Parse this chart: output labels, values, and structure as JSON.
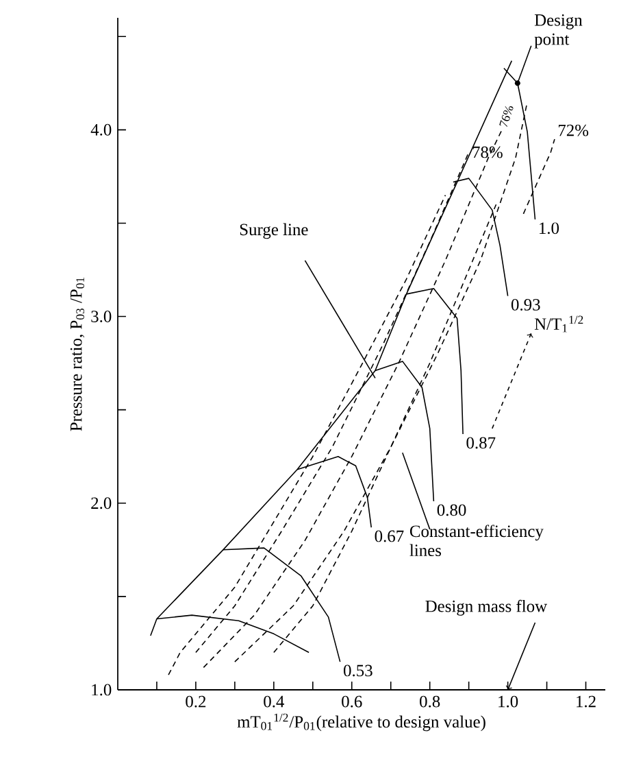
{
  "chart_data": {
    "type": "line",
    "xlabel": "mT$_{01}$$^{1/2}$/P$_{01}$(relative to design value)",
    "ylabel": "Pressure ratio, P$_{03}$ /P$_{01}$",
    "xlim": [
      0,
      1.25
    ],
    "ylim": [
      1.0,
      4.6
    ],
    "xticks": [
      {
        "value": 0.1,
        "label": null
      },
      0.2,
      {
        "value": 0.3,
        "label": null
      },
      0.4,
      {
        "value": 0.5,
        "label": null
      },
      0.6,
      {
        "value": 0.7,
        "label": null
      },
      0.8,
      {
        "value": 0.9,
        "label": null
      },
      {
        "value": 1.0,
        "label": "1.0"
      },
      {
        "value": 1.1,
        "label": null
      },
      1.2
    ],
    "yticks": [
      {
        "value": 1.0,
        "label": "1.0"
      },
      {
        "value": 1.5,
        "label": null
      },
      {
        "value": 2.0,
        "label": "2.0"
      },
      {
        "value": 2.5,
        "label": null
      },
      {
        "value": 3.0,
        "label": "3.0"
      },
      {
        "value": 3.5,
        "label": null
      },
      {
        "value": 4.0,
        "label": "4.0"
      },
      {
        "value": 4.5,
        "label": null
      }
    ],
    "series": [
      {
        "color": "#000000",
        "line_style": "solid",
        "x": [
          0.084,
          0.1,
          0.27,
          0.46,
          0.66,
          0.74,
          0.87,
          1.01
        ],
        "values": [
          1.29,
          1.38,
          1.75,
          2.18,
          2.71,
          3.12,
          3.72,
          4.37
        ]
      },
      {
        "color": "#000000",
        "line_style": "solid",
        "x": [
          0.1,
          0.19,
          0.31,
          0.4,
          0.49
        ],
        "values": [
          1.38,
          1.4,
          1.37,
          1.3,
          1.2
        ]
      },
      {
        "name": "0.53",
        "color": "#000000",
        "line_style": "solid",
        "x": [
          0.27,
          0.375,
          0.47,
          0.54,
          0.57
        ],
        "values": [
          1.75,
          1.76,
          1.61,
          1.39,
          1.15
        ]
      },
      {
        "name": "0.67",
        "color": "#000000",
        "line_style": "solid",
        "x": [
          0.46,
          0.565,
          0.61,
          0.64,
          0.65
        ],
        "values": [
          2.18,
          2.25,
          2.2,
          2.03,
          1.87
        ]
      },
      {
        "name": "0.80",
        "color": "#000000",
        "line_style": "solid",
        "x": [
          0.66,
          0.73,
          0.78,
          0.8,
          0.81
        ],
        "values": [
          2.71,
          2.76,
          2.62,
          2.4,
          2.01
        ]
      },
      {
        "name": "0.87",
        "color": "#000000",
        "line_style": "solid",
        "x": [
          0.74,
          0.81,
          0.87,
          0.88,
          0.885
        ],
        "values": [
          3.12,
          3.15,
          2.99,
          2.71,
          2.37
        ]
      },
      {
        "name": "0.93",
        "color": "#000000",
        "line_style": "solid",
        "x": [
          0.86,
          0.9,
          0.96,
          0.98,
          1.0
        ],
        "values": [
          3.72,
          3.74,
          3.57,
          3.38,
          3.11
        ]
      },
      {
        "name": "1.0",
        "color": "#000000",
        "line_style": "solid",
        "x": [
          0.99,
          1.025,
          1.05,
          1.07
        ],
        "values": [
          4.33,
          4.25,
          3.99,
          3.52
        ]
      },
      {
        "name": "78%",
        "color": "#000000",
        "line_style": "dashed",
        "x": [
          0.2,
          0.3,
          0.42,
          0.55,
          0.68,
          0.8,
          0.9
        ],
        "values": [
          1.2,
          1.45,
          1.85,
          2.3,
          2.85,
          3.4,
          3.88
        ]
      },
      {
        "name": "76%",
        "color": "#000000",
        "line_style": "dashed",
        "x": [
          0.22,
          0.35,
          0.48,
          0.6,
          0.72,
          0.84,
          0.95,
          0.985
        ],
        "values": [
          1.12,
          1.4,
          1.8,
          2.25,
          2.75,
          3.3,
          3.85,
          4.0
        ]
      },
      {
        "color": "#000000",
        "line_style": "dashed",
        "x": [
          0.3,
          0.45,
          0.58,
          0.7,
          0.82,
          0.93,
          1.02,
          1.05
        ],
        "values": [
          1.15,
          1.45,
          1.85,
          2.3,
          2.8,
          3.3,
          3.85,
          4.15
        ]
      },
      {
        "color": "#000000",
        "line_style": "dashed",
        "x": [
          0.13,
          0.16,
          0.22,
          0.3,
          0.4,
          0.5,
          0.62,
          0.74,
          0.84
        ],
        "values": [
          1.08,
          1.2,
          1.35,
          1.55,
          1.9,
          2.25,
          2.72,
          3.2,
          3.65
        ]
      },
      {
        "color": "#000000",
        "line_style": "dashed",
        "x": [
          0.4,
          0.5,
          0.6,
          0.7,
          0.8,
          0.9,
          0.97
        ],
        "values": [
          1.2,
          1.45,
          1.85,
          2.3,
          2.75,
          3.25,
          3.6
        ]
      },
      {
        "name": "72%",
        "color": "#000000",
        "line_style": "dashed",
        "x": [
          1.04,
          1.11,
          1.12
        ],
        "values": [
          3.55,
          3.88,
          3.95
        ]
      }
    ],
    "annotations": [
      {
        "text": "Design point",
        "x": 1.025,
        "y": 4.25
      },
      {
        "text": "Surge line",
        "x": 0.66,
        "y": 2.67
      },
      "Constant-efficiency lines",
      {
        "text": "Design mass flow",
        "x": 1.0,
        "y": 1.0
      },
      "N/T$_{1}$$^{1/2}$"
    ]
  }
}
